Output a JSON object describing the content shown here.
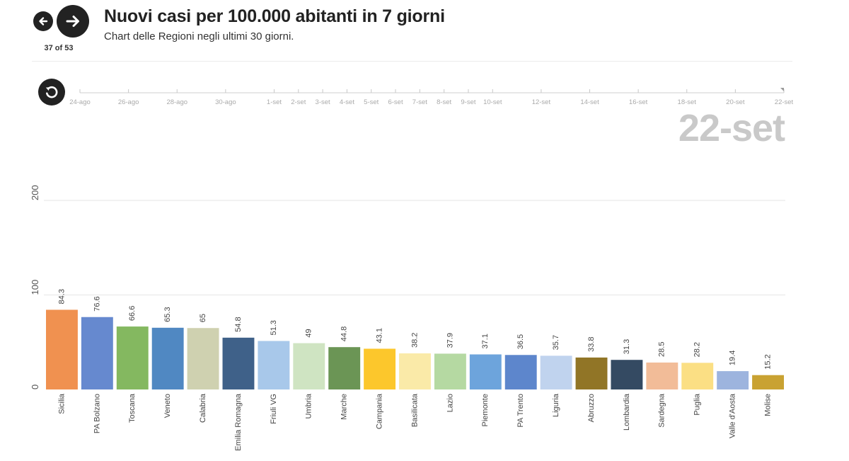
{
  "header": {
    "title": "Nuovi casi per 100.000 abitanti in 7 giorni",
    "subtitle": "Chart delle Regioni negli ultimi 30 giorni.",
    "page_counter": "37 of 53"
  },
  "timeline": {
    "ticks": [
      {
        "label": "24-ago",
        "day": 0
      },
      {
        "label": "26-ago",
        "day": 2
      },
      {
        "label": "28-ago",
        "day": 4
      },
      {
        "label": "30-ago",
        "day": 6
      },
      {
        "label": "1-set",
        "day": 8
      },
      {
        "label": "2-set",
        "day": 9
      },
      {
        "label": "3-set",
        "day": 10
      },
      {
        "label": "4-set",
        "day": 11
      },
      {
        "label": "5-set",
        "day": 12
      },
      {
        "label": "6-set",
        "day": 13
      },
      {
        "label": "7-set",
        "day": 14
      },
      {
        "label": "8-set",
        "day": 15
      },
      {
        "label": "9-set",
        "day": 16
      },
      {
        "label": "10-set",
        "day": 17
      },
      {
        "label": "12-set",
        "day": 19
      },
      {
        "label": "14-set",
        "day": 21
      },
      {
        "label": "16-set",
        "day": 23
      },
      {
        "label": "18-set",
        "day": 25
      },
      {
        "label": "20-set",
        "day": 27
      },
      {
        "label": "22-set",
        "day": 29
      }
    ],
    "current_day": 29,
    "current_label": "22-set"
  },
  "chart_data": {
    "type": "bar",
    "title": "Nuovi casi per 100.000 abitanti in 7 giorni",
    "ylim": [
      0,
      250
    ],
    "yticks": [
      0,
      100,
      200
    ],
    "grid": true,
    "categories": [
      "Sicilia",
      "PA Bolzano",
      "Toscana",
      "Veneto",
      "Calabria",
      "Emilia Romagna",
      "Friuli VG",
      "Umbria",
      "Marche",
      "Campania",
      "Basilicata",
      "Lazio",
      "Piemonte",
      "PA Trento",
      "Liguria",
      "Abruzzo",
      "Lombardia",
      "Sardegna",
      "Puglia",
      "Valle d'Aosta",
      "Molise"
    ],
    "values": [
      84.3,
      76.6,
      66.6,
      65.3,
      65,
      54.8,
      51.3,
      49,
      44.8,
      43.1,
      38.2,
      37.9,
      37.1,
      36.5,
      35.7,
      33.8,
      31.3,
      28.5,
      28.2,
      19.4,
      15.2
    ],
    "value_labels": [
      "84.3",
      "76.6",
      "66.6",
      "65.3",
      "65",
      "54.8",
      "51.3",
      "49",
      "44.8",
      "43.1",
      "38.2",
      "37.9",
      "37.1",
      "36.5",
      "35.7",
      "33.8",
      "31.3",
      "28.5",
      "28.2",
      "19.4",
      "15.2"
    ],
    "colors": [
      "#f09150",
      "#6689cf",
      "#84b860",
      "#5088c2",
      "#cfd1b0",
      "#3f6189",
      "#a8c8ea",
      "#cfe4c2",
      "#6b9555",
      "#fcc72c",
      "#faeaa8",
      "#b5d9a2",
      "#6da4dc",
      "#5d86cc",
      "#c0d3ee",
      "#917526",
      "#344a62",
      "#f2bc98",
      "#fbdf84",
      "#9db4de",
      "#c9a232"
    ]
  }
}
